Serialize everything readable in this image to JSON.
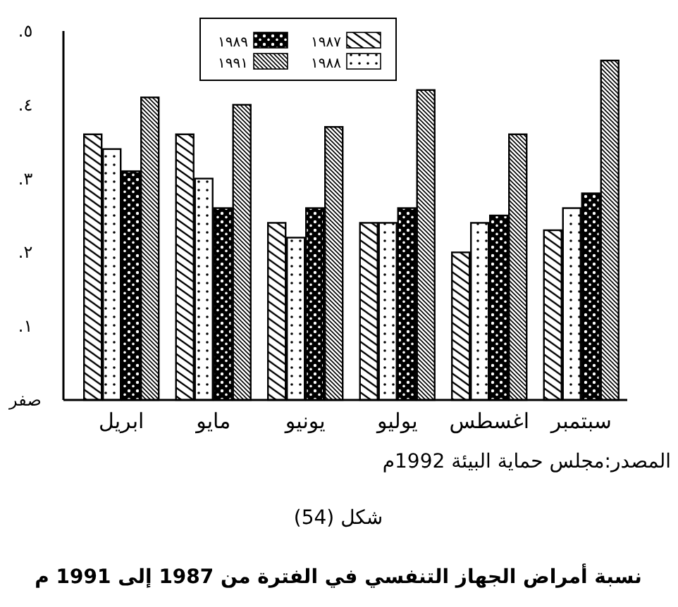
{
  "chart_data": {
    "type": "bar",
    "title": "نسبة أمراض الجهاز التنفسي في الفترة من 1987 إلى 1991 م",
    "annotations": [
      "المصدر:مجلس حماية البيئة 1992م",
      "شكل (54)"
    ],
    "categories": [
      "ابريل",
      "مايو",
      "يونيو",
      "يوليو",
      "اغسطس",
      "سبتمبر"
    ],
    "series": [
      {
        "name": "١٩٨٧",
        "color": "#000000",
        "values": [
          0.36,
          0.36,
          0.24,
          0.24,
          0.2,
          0.23
        ]
      },
      {
        "name": "١٩٨٨",
        "color": "#000000",
        "values": [
          0.34,
          0.3,
          0.22,
          0.24,
          0.24,
          0.26
        ]
      },
      {
        "name": "١٩٨٩",
        "color": "#000000",
        "values": [
          0.31,
          0.26,
          0.26,
          0.26,
          0.25,
          0.28
        ]
      },
      {
        "name": "١٩٩١",
        "color": "#000000",
        "values": [
          0.41,
          0.4,
          0.37,
          0.42,
          0.36,
          0.46
        ]
      }
    ],
    "ylim": [
      0,
      0.5
    ],
    "yticks": [
      {
        "value": 0,
        "label": "صفر"
      },
      {
        "value": 0.1,
        "label": ".١"
      },
      {
        "value": 0.2,
        "label": ".٢"
      },
      {
        "value": 0.3,
        "label": ".٣"
      },
      {
        "value": 0.4,
        "label": ".٤"
      },
      {
        "value": 0.5,
        "label": ".٥"
      }
    ],
    "grid": false,
    "legend": "top"
  }
}
